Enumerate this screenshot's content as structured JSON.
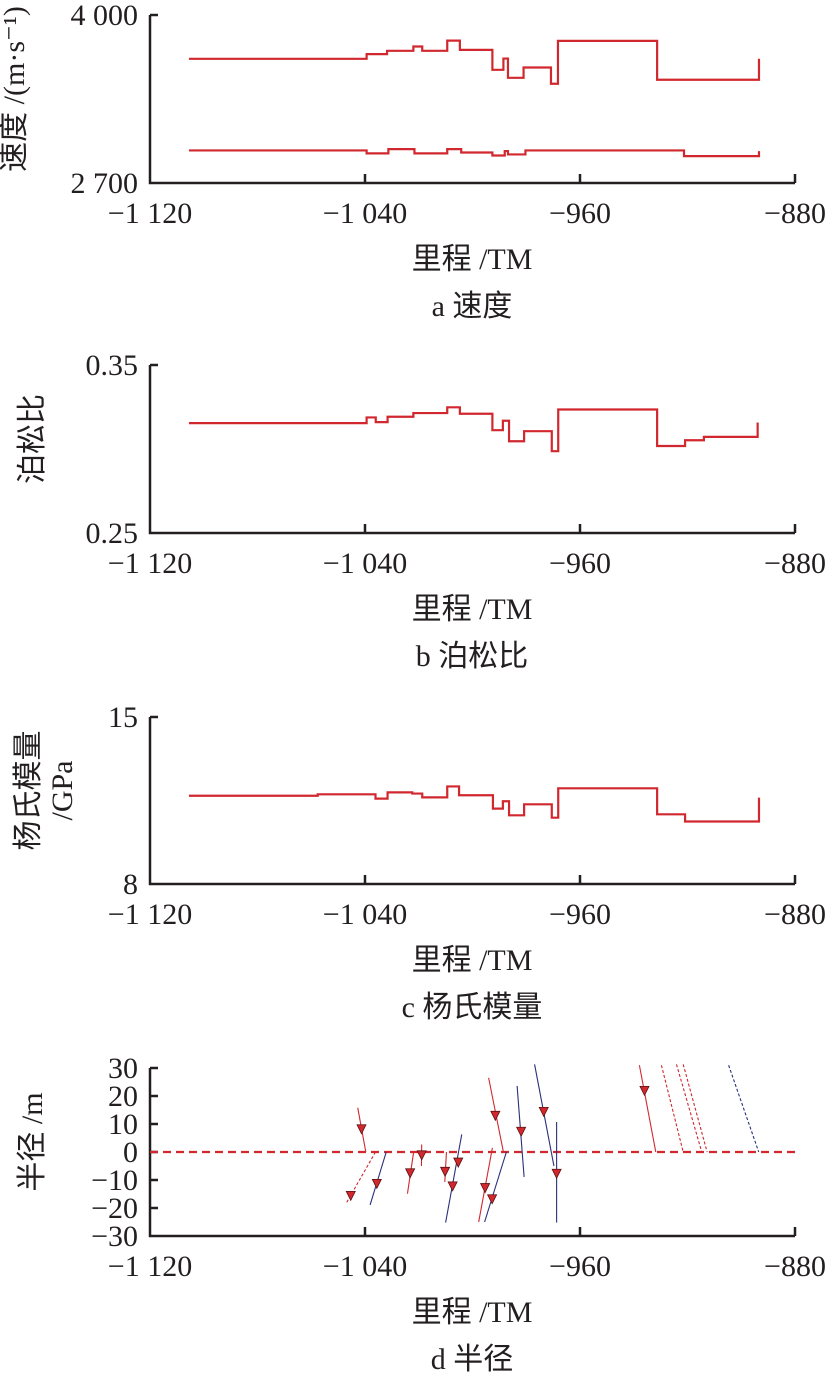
{
  "colors": {
    "line": "#d0282e",
    "red": "#d0282e",
    "blue": "#2a2f7a",
    "axis": "#231f20"
  },
  "chart_data": [
    {
      "type": "line",
      "title": "a 速度",
      "xlabel": "里程 /TM",
      "ylabel": [
        "速度 /(m·s⁻¹)"
      ],
      "xlim": [
        -1120,
        -880
      ],
      "ylim": [
        2700,
        4000
      ],
      "x_ticks": [
        {
          "value": -1120,
          "label": "−1 120"
        },
        {
          "value": -1040,
          "label": "−1 040"
        },
        {
          "value": -960,
          "label": "−960"
        },
        {
          "value": -880,
          "label": "−880"
        }
      ],
      "y_ticks": [
        {
          "value": 4000,
          "label": "4 000"
        },
        {
          "value": 2700,
          "label": "2 700"
        }
      ],
      "series": [
        {
          "steps": [
            [
              -1105.5,
              3661
            ],
            [
              -1039.4,
              3697
            ],
            [
              -1031.8,
              3723
            ],
            [
              -1022,
              3756
            ],
            [
              -1018.7,
              3723
            ],
            [
              -1009.4,
              3802
            ],
            [
              -1004.7,
              3730
            ],
            [
              -992.6,
              3576
            ],
            [
              -988.5,
              3663
            ],
            [
              -986.8,
              3514
            ],
            [
              -981,
              3594
            ],
            [
              -970.8,
              3468
            ],
            [
              -968.2,
              3800
            ],
            [
              -931.3,
              3499
            ]
          ],
          "x_end": -893.4,
          "end_value": 3661
        },
        {
          "steps": [
            [
              -1105.5,
              2952
            ],
            [
              -1039.4,
              2929
            ],
            [
              -1031.3,
              2962
            ],
            [
              -1021.6,
              2929
            ],
            [
              -1009.4,
              2962
            ],
            [
              -1004.2,
              2936
            ],
            [
              -992.6,
              2913
            ],
            [
              -988,
              2947
            ],
            [
              -986.8,
              2921
            ],
            [
              -980.3,
              2952
            ],
            [
              -921.3,
              2908
            ]
          ],
          "x_end": -893.4,
          "end_value": 2947
        }
      ]
    },
    {
      "type": "line",
      "title": "b 泊松比",
      "xlabel": "里程 /TM",
      "ylabel": [
        "泊松比"
      ],
      "xlim": [
        -1120,
        -880
      ],
      "ylim": [
        0.25,
        0.35
      ],
      "x_ticks": [
        {
          "value": -1120,
          "label": "−1 120"
        },
        {
          "value": -1040,
          "label": "−1 040"
        },
        {
          "value": -960,
          "label": "−960"
        },
        {
          "value": -880,
          "label": "−880"
        }
      ],
      "y_ticks": [
        {
          "value": 0.35,
          "label": "0.35"
        },
        {
          "value": 0.25,
          "label": "0.25"
        }
      ],
      "series": [
        {
          "steps": [
            [
              -1105.5,
              0.3154
            ],
            [
              -1039.4,
              0.3188
            ],
            [
              -1036,
              0.316
            ],
            [
              -1031.6,
              0.3192
            ],
            [
              -1022,
              0.3214
            ],
            [
              -1009.4,
              0.3248
            ],
            [
              -1004.7,
              0.321
            ],
            [
              -992.6,
              0.3112
            ],
            [
              -988.7,
              0.3168
            ],
            [
              -986.4,
              0.3046
            ],
            [
              -980.8,
              0.3106
            ],
            [
              -970.5,
              0.2987
            ],
            [
              -968.1,
              0.3235
            ],
            [
              -931.3,
              0.3018
            ],
            [
              -920.9,
              0.3052
            ],
            [
              -913.9,
              0.3072
            ]
          ],
          "x_end": -893.9,
          "end_value": 0.3158
        }
      ]
    },
    {
      "type": "line",
      "title": "c 杨氏模量",
      "xlabel": "里程 /TM",
      "ylabel": [
        "杨氏模量",
        "/GPa"
      ],
      "xlim": [
        -1120,
        -880
      ],
      "ylim": [
        8,
        15
      ],
      "x_ticks": [
        {
          "value": -1120,
          "label": "−1 120"
        },
        {
          "value": -1040,
          "label": "−1 040"
        },
        {
          "value": -960,
          "label": "−960"
        },
        {
          "value": -880,
          "label": "−880"
        }
      ],
      "y_ticks": [
        {
          "value": 15,
          "label": "15"
        },
        {
          "value": 8,
          "label": "8"
        }
      ],
      "series": [
        {
          "steps": [
            [
              -1105.5,
              11.7
            ],
            [
              -1057.6,
              11.76
            ],
            [
              -1036.1,
              11.58
            ],
            [
              -1031.6,
              11.84
            ],
            [
              -1022.4,
              11.79
            ],
            [
              -1018.7,
              11.63
            ],
            [
              -1009.4,
              12.09
            ],
            [
              -1005,
              11.72
            ],
            [
              -992.4,
              11.16
            ],
            [
              -988.7,
              11.47
            ],
            [
              -986.4,
              10.88
            ],
            [
              -980.8,
              11.34
            ],
            [
              -970.5,
              10.78
            ],
            [
              -968.1,
              12.01
            ],
            [
              -931.3,
              10.92
            ],
            [
              -920.9,
              10.62
            ]
          ],
          "x_end": -893.4,
          "end_value": 11.62
        }
      ]
    },
    {
      "type": "scatter",
      "title": "d 半径",
      "xlabel": "里程 /TM",
      "ylabel": [
        "半径 /m"
      ],
      "xlim": [
        -1120,
        -880
      ],
      "ylim": [
        -30,
        30
      ],
      "x_ticks": [
        {
          "value": -1120,
          "label": "−1 120"
        },
        {
          "value": -1040,
          "label": "−1 040"
        },
        {
          "value": -960,
          "label": "−960"
        },
        {
          "value": -880,
          "label": "−880"
        }
      ],
      "y_ticks": [
        {
          "value": 30,
          "label": "30"
        },
        {
          "value": 20,
          "label": "20"
        },
        {
          "value": 10,
          "label": "10"
        },
        {
          "value": 0,
          "label": "0"
        },
        {
          "value": -10,
          "label": "−10"
        },
        {
          "value": -20,
          "label": "−20"
        },
        {
          "value": -30,
          "label": "−30"
        }
      ],
      "reference_line": 0,
      "segments": [
        {
          "x1": -1042.7,
          "y1": 15.8,
          "x2": -1039.7,
          "y2": 0,
          "color": "red",
          "dashed": false
        },
        {
          "x1": -1036.1,
          "y1": 0,
          "x2": -1047.1,
          "y2": -18.5,
          "color": "red",
          "dashed": true
        },
        {
          "x1": -1032.1,
          "y1": 0,
          "x2": -1038.1,
          "y2": -18.9,
          "color": "blue",
          "dashed": false
        },
        {
          "x1": -1021.9,
          "y1": 0,
          "x2": -1024.2,
          "y2": -14.9,
          "color": "red",
          "dashed": false
        },
        {
          "x1": -1018.9,
          "y1": 2.7,
          "x2": -1019.0,
          "y2": -5,
          "color": "red",
          "dashed": false
        },
        {
          "x1": -1009.7,
          "y1": 0,
          "x2": -1010.3,
          "y2": -10.7,
          "color": "red",
          "dashed": false
        },
        {
          "x1": -1004.0,
          "y1": 6.3,
          "x2": -1010.0,
          "y2": -25.2,
          "color": "blue",
          "dashed": false
        },
        {
          "x1": -992.6,
          "y1": 1.5,
          "x2": -997.7,
          "y2": -25,
          "color": "red",
          "dashed": false
        },
        {
          "x1": -987.4,
          "y1": 0,
          "x2": -995.5,
          "y2": -25,
          "color": "blue",
          "dashed": false
        },
        {
          "x1": -994.0,
          "y1": 26.5,
          "x2": -988.5,
          "y2": 0,
          "color": "red",
          "dashed": false
        },
        {
          "x1": -983.4,
          "y1": 23.6,
          "x2": -980.8,
          "y2": -8.9,
          "color": "blue",
          "dashed": false
        },
        {
          "x1": -976.9,
          "y1": 31.3,
          "x2": -969.7,
          "y2": -5,
          "color": "blue",
          "dashed": false
        },
        {
          "x1": -968.7,
          "y1": 10.7,
          "x2": -968.7,
          "y2": -25.2,
          "color": "blue",
          "dashed": false
        },
        {
          "x1": -937.9,
          "y1": 31,
          "x2": -931.8,
          "y2": 0,
          "color": "red",
          "dashed": false
        },
        {
          "x1": -929.7,
          "y1": 31,
          "x2": -921.6,
          "y2": 0,
          "color": "red",
          "dashed": true
        },
        {
          "x1": -924.1,
          "y1": 31.3,
          "x2": -914.7,
          "y2": 0,
          "color": "red",
          "dashed": true
        },
        {
          "x1": -921.6,
          "y1": 31.3,
          "x2": -912.7,
          "y2": 0,
          "color": "red",
          "dashed": true
        },
        {
          "x1": -904.7,
          "y1": 31,
          "x2": -893.5,
          "y2": 0,
          "color": "blue",
          "dashed": true
        }
      ],
      "markers": [
        [
          -1041.3,
          8.3
        ],
        [
          -1045.3,
          -15.5
        ],
        [
          -1035.6,
          -11.2
        ],
        [
          -1023.2,
          -7.4
        ],
        [
          -1018.9,
          -1
        ],
        [
          -1010.2,
          -6.9
        ],
        [
          -1005.3,
          -3.6
        ],
        [
          -1007.4,
          -12.1
        ],
        [
          -995.3,
          -12.7
        ],
        [
          -992.7,
          -16.7
        ],
        [
          -991.5,
          13.1
        ],
        [
          -981.9,
          7.4
        ],
        [
          -973.5,
          14.5
        ],
        [
          -968.7,
          -7.6
        ],
        [
          -936,
          22
        ]
      ]
    }
  ]
}
